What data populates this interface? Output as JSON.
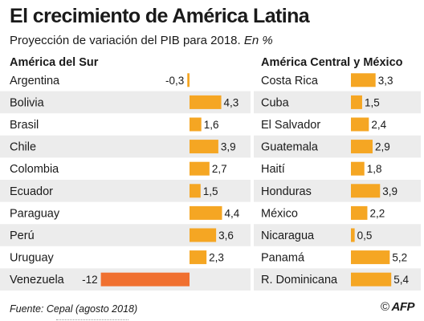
{
  "header": {
    "title": "El crecimiento de América Latina",
    "subtitle_main": "Proyección de variación del PIB para 2018.",
    "subtitle_unit": "En %"
  },
  "chart_data": [
    {
      "type": "bar",
      "orientation": "horizontal",
      "title": "América del Sur",
      "categories": [
        "Argentina",
        "Bolivia",
        "Brasil",
        "Chile",
        "Colombia",
        "Ecuador",
        "Paraguay",
        "Perú",
        "Uruguay",
        "Venezuela"
      ],
      "values": [
        -0.3,
        4.3,
        1.6,
        3.9,
        2.7,
        1.5,
        4.4,
        3.6,
        2.3,
        -12
      ],
      "value_labels": [
        "-0,3",
        "4,3",
        "1,6",
        "3,9",
        "2,7",
        "1,5",
        "4,4",
        "3,6",
        "2,3",
        "-12"
      ],
      "xlim": [
        -12,
        4.4
      ]
    },
    {
      "type": "bar",
      "orientation": "horizontal",
      "title": "América Central y México",
      "categories": [
        "Costa Rica",
        "Cuba",
        "El Salvador",
        "Guatemala",
        "Haití",
        "Honduras",
        "México",
        "Nicaragua",
        "Panamá",
        "R. Dominicana"
      ],
      "values": [
        3.3,
        1.5,
        2.4,
        2.9,
        1.8,
        3.9,
        2.2,
        0.5,
        5.2,
        5.4
      ],
      "value_labels": [
        "3,3",
        "1,5",
        "2,4",
        "2,9",
        "1,8",
        "3,9",
        "2,2",
        "0,5",
        "5,2",
        "5,4"
      ],
      "xlim": [
        0,
        5.4
      ]
    }
  ],
  "colors": {
    "positive": "#f5a623",
    "negative": "#f07030",
    "zebra": "#ececec",
    "text": "#1a1a1a"
  },
  "footer": {
    "source": "Fuente: Cepal (agosto 2018)",
    "copyright": "©",
    "logo": "AFP"
  }
}
